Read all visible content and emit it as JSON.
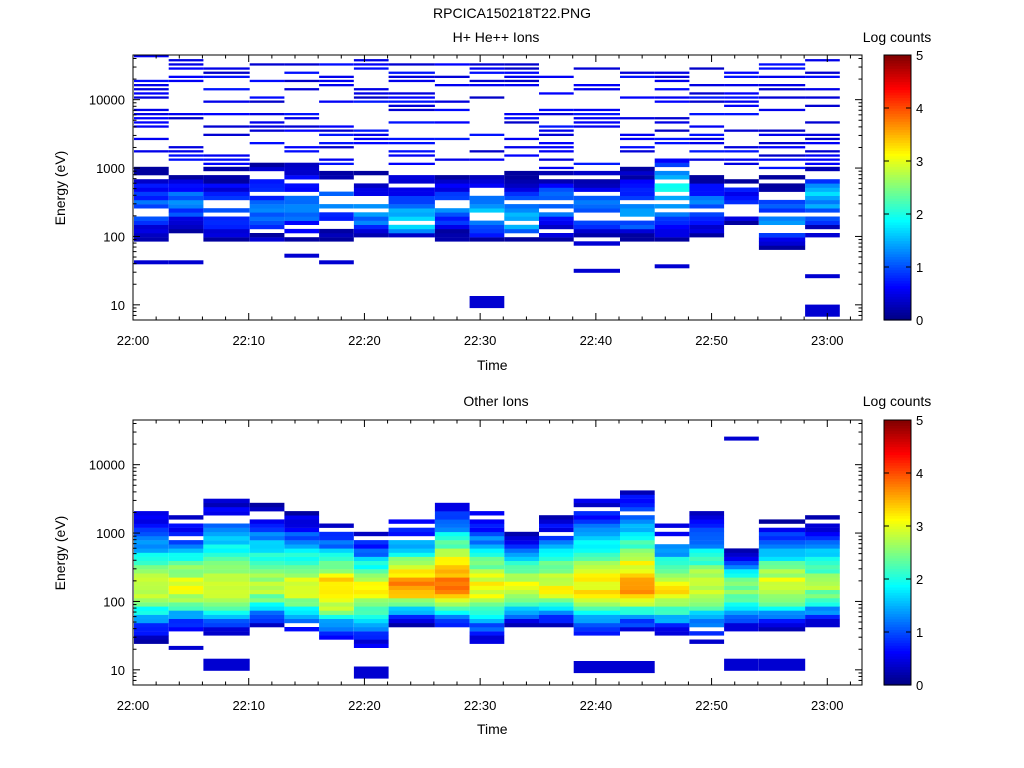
{
  "page_title": "RPCICA150218T22.PNG",
  "colorbar_title": "Log counts",
  "colorbar_ticks": [
    "0",
    "1",
    "2",
    "3",
    "4",
    "5"
  ],
  "time_ticks": [
    "22:00",
    "22:10",
    "22:20",
    "22:30",
    "22:40",
    "22:50",
    "23:00"
  ],
  "energy_ticks": [
    "10",
    "100",
    "1000",
    "10000"
  ],
  "xlabel": "Time",
  "ylabel": "Energy (eV)",
  "chart_data": [
    {
      "type": "heatmap",
      "title": "H+ He++ Ions",
      "xlabel": "Time",
      "ylabel": "Energy (eV)",
      "xlim": [
        "22:00",
        "23:03"
      ],
      "ylim": [
        6,
        45000
      ],
      "yscale": "log",
      "colorbar": {
        "label": "Log counts",
        "range": [
          0,
          5
        ],
        "colormap": "jet"
      },
      "time_bins": [
        "22:00",
        "22:03",
        "22:06",
        "22:10",
        "22:13",
        "22:16",
        "22:19",
        "22:22",
        "22:26",
        "22:29",
        "22:32",
        "22:35",
        "22:38",
        "22:42",
        "22:45",
        "22:48",
        "22:51",
        "22:54",
        "22:58",
        "23:01"
      ],
      "profiles": [
        {
          "t": 0,
          "low": 85,
          "peak": 250,
          "high": 1000,
          "level": 1.1,
          "sparse_max": 45000,
          "extra": [
            40
          ]
        },
        {
          "t": 1,
          "low": 120,
          "peak": 300,
          "high": 900,
          "level": 1.2,
          "sparse_max": 40000,
          "extra": [
            40
          ]
        },
        {
          "t": 2,
          "low": 90,
          "peak": 200,
          "high": 1100,
          "level": 1.0,
          "sparse_max": 30000,
          "extra": []
        },
        {
          "t": 3,
          "low": 80,
          "peak": 250,
          "high": 1200,
          "level": 1.1,
          "sparse_max": 40000,
          "extra": []
        },
        {
          "t": 4,
          "low": 90,
          "peak": 250,
          "high": 1200,
          "level": 1.2,
          "sparse_max": 35000,
          "extra": [
            50
          ]
        },
        {
          "t": 5,
          "low": 85,
          "peak": 300,
          "high": 1000,
          "level": 1.2,
          "sparse_max": 40000,
          "extra": [
            40
          ]
        },
        {
          "t": 6,
          "low": 95,
          "peak": 200,
          "high": 900,
          "level": 1.3,
          "sparse_max": 40000,
          "extra": []
        },
        {
          "t": 7,
          "low": 90,
          "peak": 150,
          "high": 900,
          "level": 1.6,
          "sparse_max": 35000,
          "extra": []
        },
        {
          "t": 8,
          "low": 90,
          "peak": 250,
          "high": 800,
          "level": 1.1,
          "sparse_max": 40000,
          "extra": []
        },
        {
          "t": 9,
          "low": 80,
          "peak": 200,
          "high": 800,
          "level": 1.5,
          "sparse_max": 35000,
          "extra": [
            12
          ]
        },
        {
          "t": 10,
          "low": 90,
          "peak": 150,
          "high": 1000,
          "level": 1.6,
          "sparse_max": 40000,
          "extra": []
        },
        {
          "t": 11,
          "low": 80,
          "peak": 300,
          "high": 900,
          "level": 1.2,
          "sparse_max": 35000,
          "extra": []
        },
        {
          "t": 12,
          "low": 70,
          "peak": 250,
          "high": 900,
          "level": 1.2,
          "sparse_max": 30000,
          "extra": [
            30
          ]
        },
        {
          "t": 13,
          "low": 90,
          "peak": 200,
          "high": 1100,
          "level": 1.4,
          "sparse_max": 35000,
          "extra": []
        },
        {
          "t": 14,
          "low": 80,
          "peak": 500,
          "high": 1800,
          "level": 1.8,
          "sparse_max": 35000,
          "extra": [
            35
          ]
        },
        {
          "t": 15,
          "low": 100,
          "peak": 300,
          "high": 800,
          "level": 1.2,
          "sparse_max": 35000,
          "extra": []
        },
        {
          "t": 16,
          "low": 150,
          "peak": 350,
          "high": 700,
          "level": 0.9,
          "sparse_max": 40000,
          "extra": []
        },
        {
          "t": 17,
          "low": 60,
          "peak": 150,
          "high": 800,
          "level": 1.2,
          "sparse_max": 35000,
          "extra": []
        },
        {
          "t": 18,
          "low": 90,
          "peak": 400,
          "high": 1100,
          "level": 1.5,
          "sparse_max": 40000,
          "extra": [
            25,
            9
          ]
        }
      ]
    },
    {
      "type": "heatmap",
      "title": "Other Ions",
      "xlabel": "Time",
      "ylabel": "Energy (eV)",
      "xlim": [
        "22:00",
        "23:03"
      ],
      "ylim": [
        6,
        45000
      ],
      "yscale": "log",
      "colorbar": {
        "label": "Log counts",
        "range": [
          0,
          5
        ],
        "colormap": "jet"
      },
      "time_bins": [
        "22:00",
        "22:03",
        "22:06",
        "22:10",
        "22:13",
        "22:16",
        "22:19",
        "22:22",
        "22:26",
        "22:29",
        "22:32",
        "22:35",
        "22:38",
        "22:42",
        "22:45",
        "22:48",
        "22:51",
        "22:54",
        "22:58",
        "23:01"
      ],
      "profiles": [
        {
          "t": 0,
          "low": 25,
          "peak": 150,
          "high": 2200,
          "level": 2.8,
          "extra": []
        },
        {
          "t": 1,
          "low": 35,
          "peak": 150,
          "high": 1700,
          "level": 3.0,
          "extra": [
            20
          ]
        },
        {
          "t": 2,
          "low": 30,
          "peak": 150,
          "high": 3300,
          "level": 2.9,
          "extra": [
            13
          ]
        },
        {
          "t": 3,
          "low": 40,
          "peak": 160,
          "high": 2600,
          "level": 2.8,
          "extra": []
        },
        {
          "t": 4,
          "low": 35,
          "peak": 150,
          "high": 2000,
          "level": 3.0,
          "extra": []
        },
        {
          "t": 5,
          "low": 25,
          "peak": 140,
          "high": 1400,
          "level": 3.4,
          "extra": []
        },
        {
          "t": 6,
          "low": 20,
          "peak": 150,
          "high": 1000,
          "level": 3.0,
          "extra": [
            10
          ]
        },
        {
          "t": 7,
          "low": 45,
          "peak": 160,
          "high": 1500,
          "level": 3.6,
          "extra": []
        },
        {
          "t": 8,
          "low": 35,
          "peak": 160,
          "high": 3300,
          "level": 3.7,
          "extra": []
        },
        {
          "t": 9,
          "low": 25,
          "peak": 150,
          "high": 2000,
          "level": 3.1,
          "extra": []
        },
        {
          "t": 10,
          "low": 40,
          "peak": 150,
          "high": 1100,
          "level": 3.0,
          "extra": []
        },
        {
          "t": 11,
          "low": 40,
          "peak": 150,
          "high": 1700,
          "level": 3.0,
          "extra": []
        },
        {
          "t": 12,
          "low": 30,
          "peak": 150,
          "high": 3000,
          "level": 3.2,
          "extra": [
            12
          ]
        },
        {
          "t": 13,
          "low": 35,
          "peak": 150,
          "high": 4500,
          "level": 3.5,
          "extra": [
            12
          ]
        },
        {
          "t": 14,
          "low": 30,
          "peak": 140,
          "high": 1300,
          "level": 3.1,
          "extra": []
        },
        {
          "t": 15,
          "low": 25,
          "peak": 150,
          "high": 2100,
          "level": 2.9,
          "extra": []
        },
        {
          "t": 16,
          "low": 35,
          "peak": 150,
          "high": 600,
          "level": 2.6,
          "extra": [
            23000,
            13
          ]
        },
        {
          "t": 17,
          "low": 35,
          "peak": 160,
          "high": 1500,
          "level": 3.0,
          "extra": [
            13
          ]
        },
        {
          "t": 18,
          "low": 40,
          "peak": 160,
          "high": 1700,
          "level": 2.6,
          "extra": []
        }
      ]
    }
  ]
}
